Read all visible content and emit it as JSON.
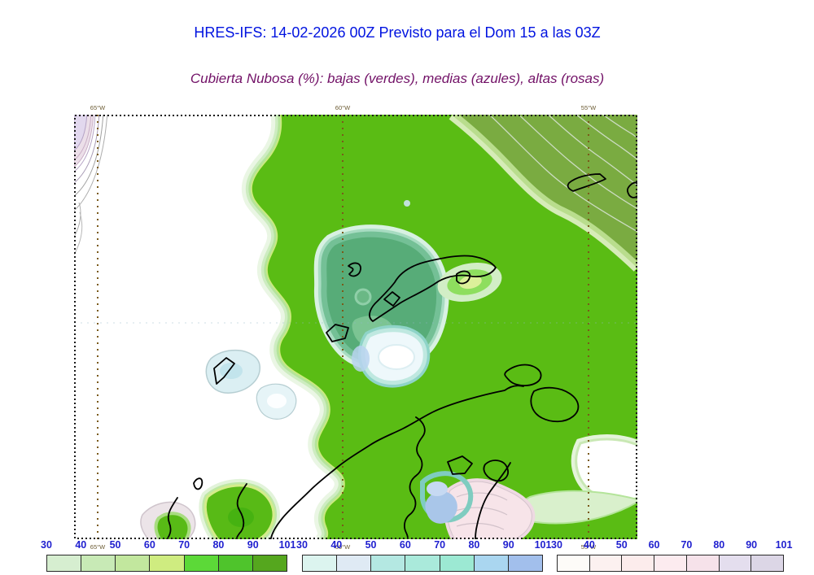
{
  "header": {
    "title": "HRES-IFS: 14-02-2026 00Z Previsto para el Dom 15 a las 03Z",
    "subtitle": "Cubierta Nubosa (%): bajas (verdes), medias (azules), altas (rosas)"
  },
  "map": {
    "top_axis_labels": [
      "65°W",
      "60°W",
      "55°W"
    ],
    "bottom_axis_labels": [
      "65°W",
      "60°W",
      "55°W"
    ],
    "region_colors": {
      "low_cloud_green": "#5abc14",
      "low_cloud_dense_olive": "#7aab41",
      "mixed_low_mid_teal": "#57ac78",
      "mid_cloud_blue": "#a9c6e9",
      "high_cloud_pink": "#f7e4e9",
      "coastline": "#000000",
      "gridline_brown": "#7a5a1a"
    }
  },
  "colorbars": [
    {
      "name": "bajas-verdes",
      "ticks": [
        "30",
        "40",
        "50",
        "60",
        "70",
        "80",
        "90",
        "101"
      ],
      "colors": [
        "#d6eed0",
        "#c8eab6",
        "#c2e79e",
        "#cfec80",
        "#5cd938",
        "#4fc42c",
        "#55a71e"
      ]
    },
    {
      "name": "medias-azules",
      "ticks": [
        "30",
        "40",
        "50",
        "60",
        "70",
        "80",
        "90",
        "101"
      ],
      "colors": [
        "#dcf4ef",
        "#dfeaf4",
        "#b4e8e2",
        "#aaeadb",
        "#9ce9d3",
        "#aad6f0",
        "#a2bfec"
      ]
    },
    {
      "name": "altas-rosas",
      "ticks": [
        "30",
        "40",
        "50",
        "60",
        "70",
        "80",
        "90",
        "101"
      ],
      "colors": [
        "#fdfbf8",
        "#fcf1f0",
        "#fcecec",
        "#fcebef",
        "#f6e2ea",
        "#e4deee",
        "#dcd6e6"
      ]
    }
  ],
  "styles": {
    "title_color": "#0013e0",
    "subtitle_color": "#721167",
    "tick_color": "#1f1fcf",
    "axis_label_color": "#6b5b33"
  }
}
